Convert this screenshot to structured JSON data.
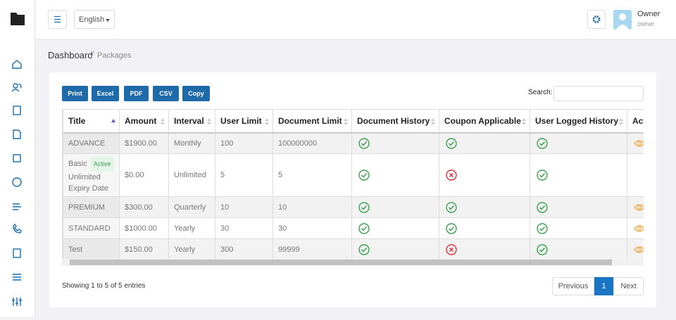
{
  "header": {
    "language": "English",
    "user_name": "Owner",
    "user_role": "owner"
  },
  "breadcrumb": {
    "home": "Dashboard",
    "current": "Packages"
  },
  "buttons": [
    "Print",
    "Excel",
    "PDF",
    "CSV",
    "Copy"
  ],
  "search_label": "Search:",
  "table": {
    "columns": [
      "Title",
      "Amount",
      "Interval",
      "User Limit",
      "Document Limit",
      "Document History",
      "Coupon Applicable",
      "User Logged History",
      "Action"
    ],
    "rows": [
      {
        "title": "ADVANCE",
        "amount": "$1900.00",
        "interval": "Monthly",
        "user_limit": "100",
        "document_limit": "100000000",
        "document_history": true,
        "coupon_applicable": true,
        "user_logged_history": true,
        "viewable": true
      },
      {
        "title": "Basic",
        "badge": "Active",
        "note": "Unlimited Expiry Date",
        "amount": "$0.00",
        "interval": "Unlimited",
        "user_limit": "5",
        "document_limit": "5",
        "document_history": true,
        "coupon_applicable": false,
        "user_logged_history": true,
        "viewable": false
      },
      {
        "title": "PREMIUM",
        "amount": "$300.00",
        "interval": "Quarterly",
        "user_limit": "10",
        "document_limit": "10",
        "document_history": true,
        "coupon_applicable": true,
        "user_logged_history": true,
        "viewable": true
      },
      {
        "title": "STANDARD",
        "amount": "$1000.00",
        "interval": "Yearly",
        "user_limit": "30",
        "document_limit": "30",
        "document_history": true,
        "coupon_applicable": true,
        "user_logged_history": true,
        "viewable": true
      },
      {
        "title": "Test",
        "amount": "$150.00",
        "interval": "Yearly",
        "user_limit": "300",
        "document_limit": "99999",
        "document_history": true,
        "coupon_applicable": false,
        "user_logged_history": true,
        "viewable": true
      }
    ]
  },
  "info": "Showing 1 to 5 of 5 entries",
  "pagination": {
    "previous": "Previous",
    "page": "1",
    "next": "Next"
  }
}
